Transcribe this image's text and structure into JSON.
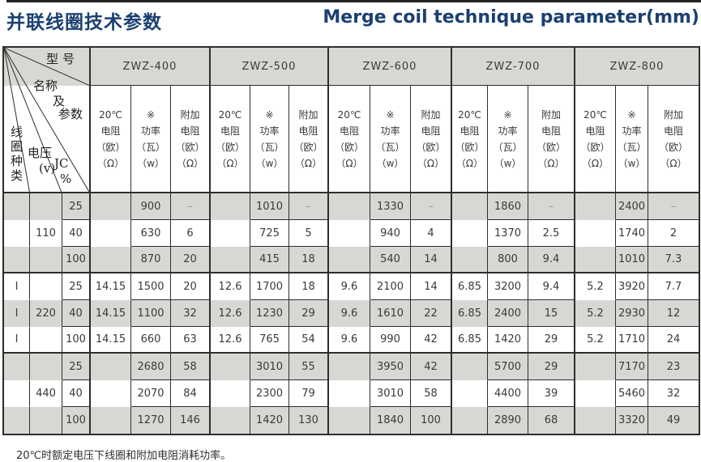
{
  "page": {
    "title_zh": "并联线圈技术参数",
    "title_en": "Merge coil technique parameter(mm)",
    "footnote": "20℃时额定电压下线圈和附加电阻消耗功率。"
  },
  "colors": {
    "title": "#1b4070",
    "stripe": "#d8d7d3",
    "header_bg": "#d8d7d3",
    "border": "#2e2e2e",
    "text": "#3a3a3a",
    "dash": "#979797",
    "topbar": "#262626"
  },
  "corner": {
    "model": "型号",
    "name1": "名称",
    "name2": "及",
    "name3": "参数",
    "coil_type": "线圈种类",
    "voltage": "电压",
    "voltage_unit": "(v)",
    "jc": "JC",
    "jc_unit": "%"
  },
  "models": [
    "ZWZ-400",
    "ZWZ-500",
    "ZWZ-600",
    "ZWZ-700",
    "ZWZ-800"
  ],
  "subheaders": {
    "resistance": [
      "20℃",
      "电阻",
      "（欧）",
      "（Ω）"
    ],
    "power": [
      "※",
      "功率",
      "（瓦）",
      "（w）"
    ],
    "extra_resistance": [
      "附加",
      "电阻",
      "（欧）",
      "（Ω）"
    ]
  },
  "groups": [
    {
      "coil_type": "",
      "voltage": "110",
      "rows": [
        {
          "jc": "25",
          "cells": [
            [
              "",
              "900",
              "–"
            ],
            [
              "",
              "1010",
              "–"
            ],
            [
              "",
              "1330",
              "–"
            ],
            [
              "",
              "1860",
              "–"
            ],
            [
              "",
              "2400",
              "–"
            ]
          ]
        },
        {
          "jc": "40",
          "cells": [
            [
              "",
              "630",
              "6"
            ],
            [
              "",
              "725",
              "5"
            ],
            [
              "",
              "940",
              "4"
            ],
            [
              "",
              "1370",
              "2.5"
            ],
            [
              "",
              "1740",
              "2"
            ]
          ]
        },
        {
          "jc": "100",
          "cells": [
            [
              "",
              "870",
              "20"
            ],
            [
              "",
              "415",
              "18"
            ],
            [
              "",
              "540",
              "14"
            ],
            [
              "",
              "800",
              "9.4"
            ],
            [
              "",
              "1010",
              "7.3"
            ]
          ]
        }
      ]
    },
    {
      "coil_type": "I",
      "voltage": "220",
      "rows": [
        {
          "jc": "25",
          "cells": [
            [
              "14.15",
              "1500",
              "20"
            ],
            [
              "12.6",
              "1700",
              "18"
            ],
            [
              "9.6",
              "2100",
              "14"
            ],
            [
              "6.85",
              "3200",
              "9.4"
            ],
            [
              "5.2",
              "3920",
              "7.7"
            ]
          ]
        },
        {
          "jc": "40",
          "cells": [
            [
              "14.15",
              "1100",
              "32"
            ],
            [
              "12.6",
              "1230",
              "29"
            ],
            [
              "9.6",
              "1610",
              "22"
            ],
            [
              "6.85",
              "2400",
              "15"
            ],
            [
              "5.2",
              "2930",
              "12"
            ]
          ]
        },
        {
          "jc": "100",
          "cells": [
            [
              "14.15",
              "660",
              "63"
            ],
            [
              "12.6",
              "765",
              "54"
            ],
            [
              "9.6",
              "990",
              "42"
            ],
            [
              "6.85",
              "1420",
              "29"
            ],
            [
              "5.2",
              "1710",
              "24"
            ]
          ]
        }
      ]
    },
    {
      "coil_type": "",
      "voltage": "440",
      "rows": [
        {
          "jc": "25",
          "cells": [
            [
              "",
              "2680",
              "58"
            ],
            [
              "",
              "3010",
              "55"
            ],
            [
              "",
              "3950",
              "42"
            ],
            [
              "",
              "5700",
              "29"
            ],
            [
              "",
              "7170",
              "23"
            ]
          ]
        },
        {
          "jc": "40",
          "cells": [
            [
              "",
              "2070",
              "84"
            ],
            [
              "",
              "2300",
              "79"
            ],
            [
              "",
              "3010",
              "58"
            ],
            [
              "",
              "4400",
              "39"
            ],
            [
              "",
              "5460",
              "32"
            ]
          ]
        },
        {
          "jc": "100",
          "cells": [
            [
              "",
              "1270",
              "146"
            ],
            [
              "",
              "1420",
              "130"
            ],
            [
              "",
              "1840",
              "100"
            ],
            [
              "",
              "2890",
              "68"
            ],
            [
              "",
              "3320",
              "49"
            ]
          ]
        }
      ]
    }
  ]
}
